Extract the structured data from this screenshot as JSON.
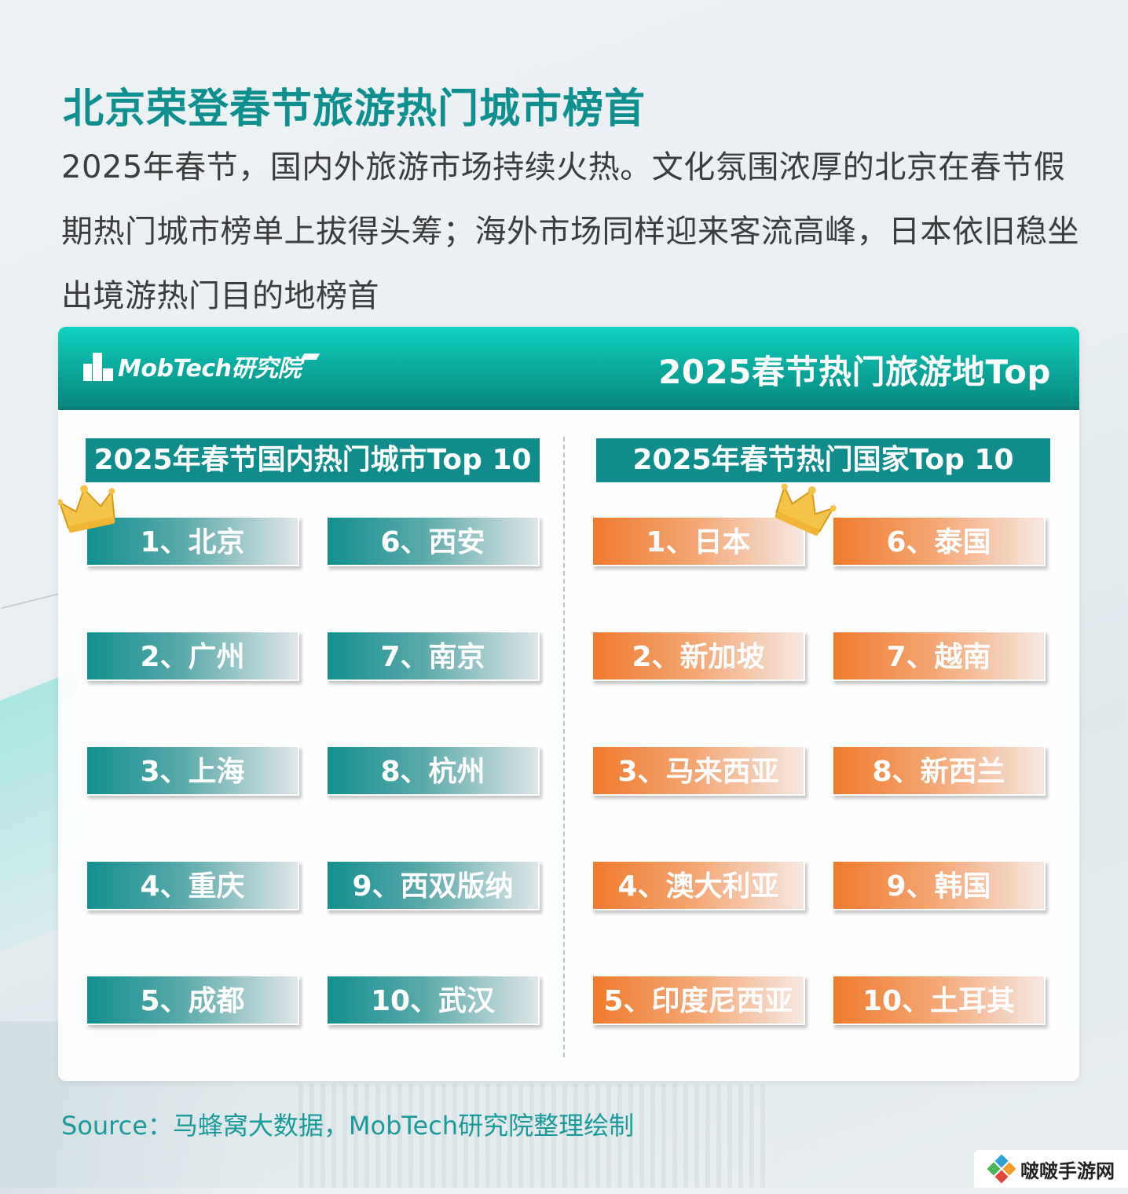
{
  "title": "北京荣登春节旅游热门城市榜首",
  "intro": "2025年春节，国内外旅游市场持续火热。文化氛围浓厚的北京在春节假期热门城市榜单上拔得头筹；海外市场同样迎来客流高峰，日本依旧稳坐出境游热门目的地榜首",
  "panel": {
    "logo_text": "MobTech研究院",
    "header_title": "2025春节热门旅游地Top",
    "left_label": "2025年春节国内热门城市Top 10",
    "right_label": "2025年春节热门国家Top 10"
  },
  "domestic": [
    {
      "rank": "1、",
      "name": "北京"
    },
    {
      "rank": "2、",
      "name": "广州"
    },
    {
      "rank": "3、",
      "name": "上海"
    },
    {
      "rank": "4、",
      "name": "重庆"
    },
    {
      "rank": "5、",
      "name": "成都"
    },
    {
      "rank": "6、",
      "name": "西安"
    },
    {
      "rank": "7、",
      "name": "南京"
    },
    {
      "rank": "8、",
      "name": "杭州"
    },
    {
      "rank": "9、",
      "name": "西双版纳"
    },
    {
      "rank": "10、",
      "name": "武汉"
    }
  ],
  "international": [
    {
      "rank": "1、",
      "name": "日本"
    },
    {
      "rank": "2、",
      "name": "新加坡"
    },
    {
      "rank": "3、",
      "name": "马来西亚"
    },
    {
      "rank": "4、",
      "name": "澳大利亚"
    },
    {
      "rank": "5、",
      "name": "印度尼西亚"
    },
    {
      "rank": "6、",
      "name": "泰国"
    },
    {
      "rank": "7、",
      "name": "越南"
    },
    {
      "rank": "8、",
      "name": "新西兰"
    },
    {
      "rank": "9、",
      "name": "韩国"
    },
    {
      "rank": "10、",
      "name": "土耳其"
    }
  ],
  "source": "Source：马蜂窝大数据，MobTech研究院整理绘制",
  "watermark": "啵啵手游网",
  "colors": {
    "title": "#0f8f8f",
    "teal": "#128f90",
    "orange": "#ef7a2c",
    "crown": "#f3c34a"
  },
  "icons": [
    "crown-icon",
    "mobtech-logo-icon",
    "watermark-logo-icon"
  ]
}
